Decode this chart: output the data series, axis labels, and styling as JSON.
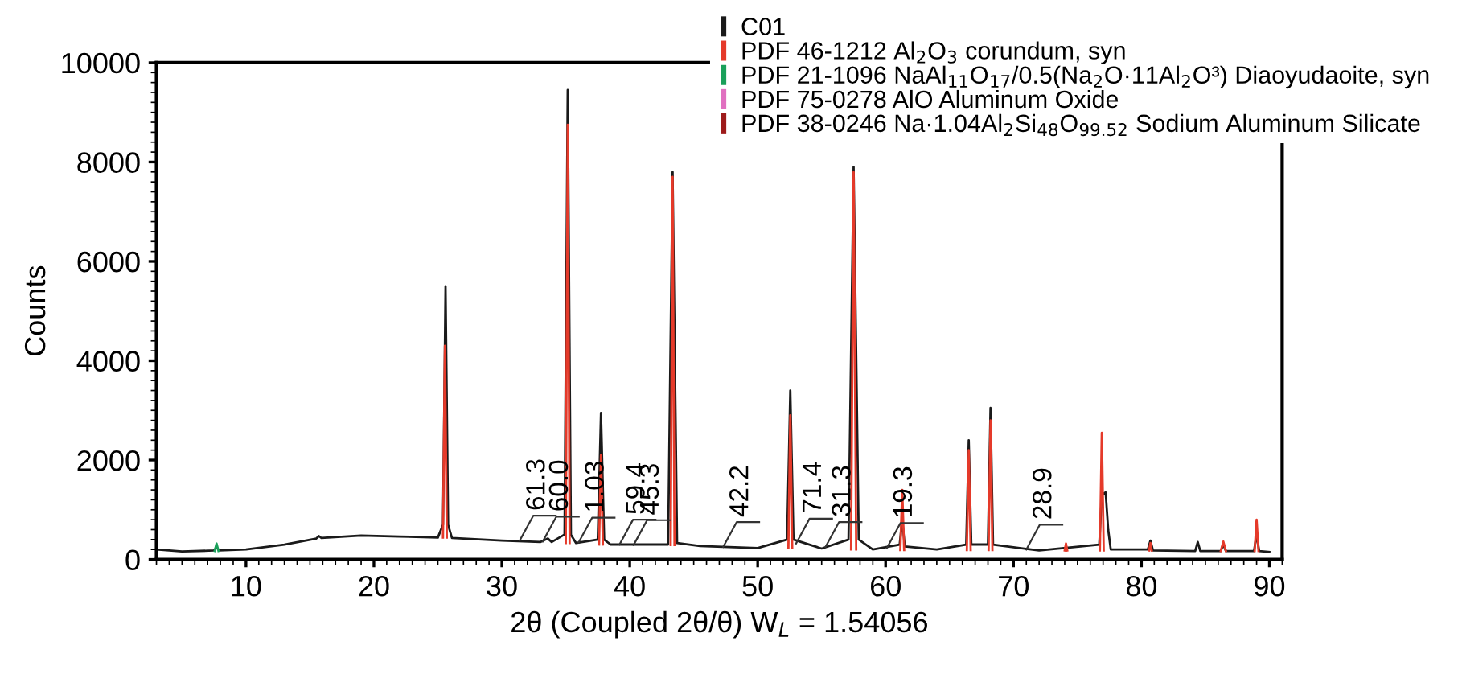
{
  "chart_data": {
    "type": "line",
    "xlabel": "2θ (Coupled 2θ/θ) W$_{L}$ = 1.54056",
    "ylabel": "Counts",
    "xlim": [
      3,
      91
    ],
    "ylim": [
      0,
      10000
    ],
    "xticks": [
      10,
      20,
      30,
      40,
      50,
      60,
      70,
      80,
      90
    ],
    "yticks": [
      0,
      2000,
      4000,
      6000,
      8000,
      10000
    ],
    "grid": false,
    "legend": "top right",
    "series": [
      {
        "name": "C01",
        "color": "#1a1a1a",
        "x": [
          3,
          5,
          7.5,
          7.7,
          7.9,
          10,
          13,
          15.5,
          15.7,
          15.9,
          19,
          22,
          25,
          25.4,
          25.6,
          25.8,
          26.1,
          30,
          33,
          33.6,
          33.9,
          34.9,
          35.15,
          35.4,
          35.8,
          37.5,
          37.75,
          38.0,
          38.5,
          43.0,
          43.35,
          43.7,
          45.5,
          50,
          52.3,
          52.55,
          52.8,
          55,
          57.1,
          57.5,
          57.9,
          59,
          61.1,
          61.3,
          61.5,
          64,
          66.3,
          66.5,
          66.7,
          68.0,
          68.2,
          68.4,
          72,
          76.7,
          76.9,
          77.2,
          77.4,
          77.6,
          80.5,
          80.7,
          80.9,
          84.2,
          84.4,
          84.6,
          86.2,
          86.4,
          86.6,
          88.8,
          89.0,
          89.2,
          90
        ],
        "values": [
          200,
          160,
          180,
          240,
          180,
          200,
          300,
          420,
          470,
          430,
          480,
          460,
          440,
          700,
          5500,
          700,
          430,
          380,
          350,
          420,
          350,
          500,
          9450,
          500,
          330,
          400,
          2950,
          400,
          300,
          300,
          7800,
          330,
          270,
          230,
          400,
          3400,
          400,
          220,
          400,
          7900,
          400,
          200,
          300,
          800,
          260,
          200,
          300,
          2400,
          300,
          300,
          3050,
          300,
          180,
          300,
          1300,
          1350,
          600,
          200,
          200,
          380,
          180,
          170,
          350,
          170,
          170,
          300,
          170,
          170,
          500,
          170,
          150
        ]
      },
      {
        "name": "PDF 46-1212 Al$_{2}$O$_{3}$ corundum, syn",
        "color": "#e53a2a",
        "x": [
          25.4,
          25.55,
          25.7,
          25.8,
          35.0,
          35.15,
          35.3,
          35.4,
          37.6,
          37.75,
          37.9,
          38.0,
          43.2,
          43.35,
          43.5,
          43.6,
          52.4,
          52.55,
          52.7,
          52.8,
          57.3,
          57.5,
          57.7,
          57.8,
          61.15,
          61.3,
          61.45,
          61.5,
          66.35,
          66.5,
          66.65,
          66.7,
          68.05,
          68.2,
          68.35,
          68.4,
          74.0,
          74.1,
          74.2,
          74.3,
          76.75,
          76.9,
          77.05,
          77.1,
          80.6,
          80.7,
          80.8,
          80.9,
          86.2,
          86.4,
          86.6,
          86.7,
          88.85,
          89.0,
          89.15
        ],
        "values": [
          440,
          4300,
          440,
          null,
          330,
          8750,
          330,
          null,
          300,
          2100,
          300,
          null,
          290,
          7700,
          290,
          null,
          230,
          2900,
          230,
          null,
          200,
          7800,
          200,
          null,
          190,
          1400,
          190,
          null,
          190,
          2200,
          190,
          null,
          190,
          2800,
          190,
          null,
          180,
          320,
          180,
          null,
          180,
          2550,
          180,
          null,
          180,
          330,
          180,
          null,
          170,
          360,
          170,
          null,
          170,
          800,
          170
        ]
      },
      {
        "name": "PDF 21-1096 NaAl$_{11}$O$_{17}$/0.5(Na$_{2}$O·11Al$_{2}$O³) Diaoyudaoite, syn",
        "color": "#1aa05a",
        "x": [
          7.55,
          7.7,
          7.85
        ],
        "values": [
          170,
          320,
          170
        ]
      },
      {
        "name": "PDF 75-0278 AlO Aluminum Oxide",
        "color": "#e070c0"
      },
      {
        "name": "PDF 38-0246 Na·1.04Al$_{2}$Si$_{48}$O$_{99.52}$ Sodium Aluminum Silicate",
        "color": "#9e1b1b"
      }
    ],
    "annotations": [
      {
        "text": "61.3",
        "x": 31.4,
        "y": 380
      },
      {
        "text": "60.0",
        "x": 33.2,
        "y": 360
      },
      {
        "text": "1.03",
        "x": 36.0,
        "y": 340
      },
      {
        "text": "59.4",
        "x": 39.2,
        "y": 300
      },
      {
        "text": "45.3",
        "x": 40.3,
        "y": 290
      },
      {
        "text": "42.2",
        "x": 47.3,
        "y": 250
      },
      {
        "text": "71.4",
        "x": 53.0,
        "y": 320
      },
      {
        "text": "31.3",
        "x": 55.3,
        "y": 250
      },
      {
        "text": "19.3",
        "x": 60.1,
        "y": 230
      },
      {
        "text": "28.9",
        "x": 71.0,
        "y": 200
      }
    ]
  }
}
